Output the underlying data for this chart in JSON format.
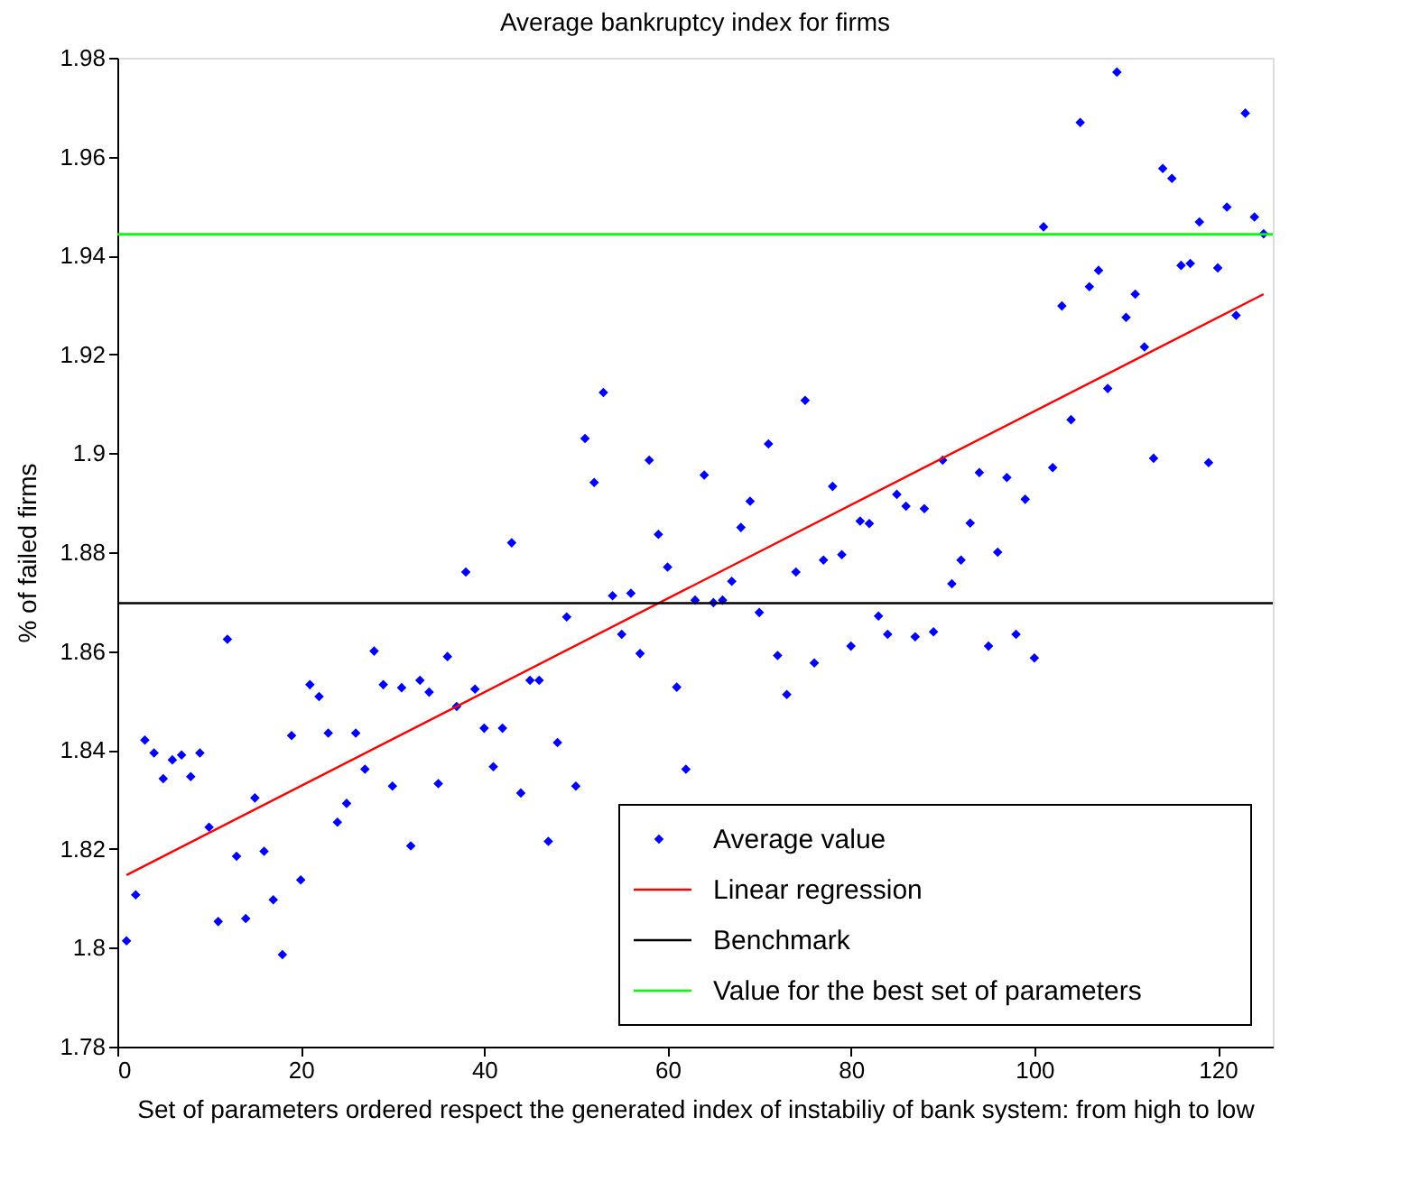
{
  "chart_data": {
    "type": "scatter",
    "title": "Average bankruptcy index for firms",
    "xlabel": "Set of parameters ordered respect the generated index of  instabiliy of bank system: from high to low",
    "ylabel": "% of failed firms",
    "xlim": [
      0,
      126
    ],
    "xticks": [
      0,
      20,
      40,
      60,
      80,
      100,
      120
    ],
    "ylim": [
      1.78,
      1.98
    ],
    "yticks": [
      1.78,
      1.8,
      1.82,
      1.84,
      1.86,
      1.88,
      1.9,
      1.92,
      1.94,
      1.96,
      1.98
    ],
    "grid": false,
    "legend": "bottom right",
    "x": [
      1,
      2,
      3,
      4,
      5,
      6,
      7,
      8,
      9,
      10,
      11,
      12,
      13,
      14,
      15,
      16,
      17,
      18,
      19,
      20,
      21,
      22,
      23,
      24,
      25,
      26,
      27,
      28,
      29,
      30,
      31,
      32,
      33,
      34,
      35,
      36,
      37,
      38,
      39,
      40,
      41,
      42,
      43,
      44,
      45,
      46,
      47,
      48,
      49,
      50,
      51,
      52,
      53,
      54,
      55,
      56,
      57,
      58,
      59,
      60,
      61,
      62,
      63,
      64,
      65,
      66,
      67,
      68,
      69,
      70,
      71,
      72,
      73,
      74,
      75,
      76,
      77,
      78,
      79,
      80,
      81,
      82,
      83,
      84,
      85,
      86,
      87,
      88,
      89,
      90,
      91,
      92,
      93,
      94,
      95,
      96,
      97,
      98,
      99,
      100,
      101,
      102,
      103,
      104,
      105,
      106,
      107,
      108,
      109,
      110,
      111,
      112,
      113,
      114,
      115,
      116,
      117,
      118,
      119,
      120,
      121,
      122,
      123,
      124,
      125
    ],
    "series": [
      {
        "name": "Average value",
        "color": "#0000ff",
        "marker": "diamond",
        "values": [
          1.8014,
          1.8107,
          1.842,
          1.8394,
          1.8342,
          1.838,
          1.839,
          1.8346,
          1.8394,
          1.8244,
          1.8053,
          1.8624,
          1.8185,
          1.8059,
          1.8303,
          1.8195,
          1.8097,
          1.7986,
          1.8429,
          1.8137,
          1.8532,
          1.8508,
          1.8434,
          1.8254,
          1.8292,
          1.8434,
          1.8361,
          1.86,
          1.8532,
          1.8327,
          1.8526,
          1.8206,
          1.8541,
          1.8517,
          1.8332,
          1.8589,
          1.8488,
          1.876,
          1.8523,
          1.8444,
          1.8366,
          1.8444,
          1.8819,
          1.8313,
          1.8541,
          1.8541,
          1.8215,
          1.8415,
          1.8669,
          1.8327,
          1.903,
          1.8941,
          1.9123,
          1.8712,
          1.8634,
          1.8717,
          1.8595,
          1.8986,
          1.8836,
          1.877,
          1.8527,
          1.8361,
          1.8703,
          1.8956,
          1.8698,
          1.8703,
          1.8741,
          1.885,
          1.8903,
          1.8678,
          1.9019,
          1.8591,
          1.8512,
          1.876,
          1.9107,
          1.8576,
          1.8784,
          1.8933,
          1.8795,
          1.861,
          1.8863,
          1.8858,
          1.8671,
          1.8634,
          1.8917,
          1.8893,
          1.8629,
          1.8888,
          1.8639,
          1.8986,
          1.8736,
          1.8784,
          1.8859,
          1.8961,
          1.861,
          1.88,
          1.8951,
          1.8634,
          1.8907,
          1.8586,
          1.9458,
          1.8971,
          1.9298,
          1.9068,
          1.9669,
          1.9337,
          1.937,
          1.9131,
          1.9771,
          1.9275,
          1.9322,
          1.9215,
          1.899,
          1.9576,
          1.9556,
          1.938,
          1.9384,
          1.9468,
          1.8981,
          1.9375,
          1.9498,
          1.9279,
          1.9688,
          1.9478,
          1.9444
        ]
      },
      {
        "name": "Linear regression",
        "type": "line",
        "color": "#ff0000",
        "marker": "none",
        "line_style": "solid",
        "x": [
          1,
          125
        ],
        "values": [
          1.8147,
          1.9322
        ]
      }
    ],
    "ref_lines": [
      {
        "axis": "y",
        "value": 1.8697,
        "label": "Benchmark",
        "color": "#000000"
      },
      {
        "axis": "y",
        "value": 1.9443,
        "label": "Value for the best set of parameters",
        "color": "#00ff00"
      }
    ]
  }
}
